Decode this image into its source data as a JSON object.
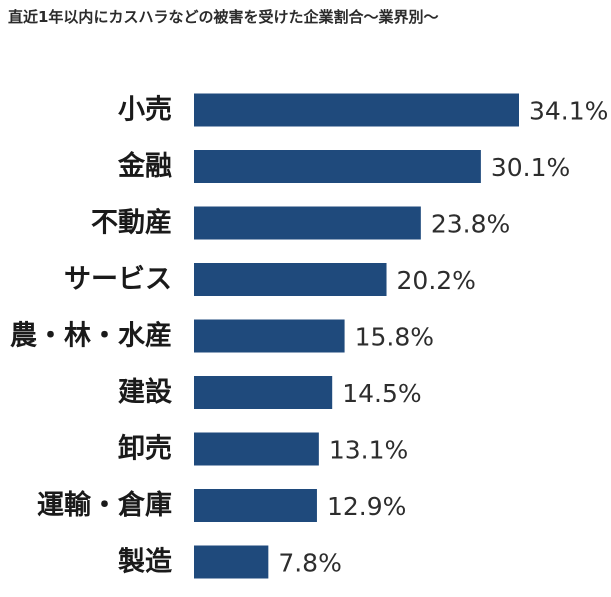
{
  "chart_data": {
    "type": "bar",
    "orientation": "horizontal",
    "title": "直近1年以内にカスハラなどの被害を受けた企業割合〜業界別〜",
    "xlabel": "",
    "ylabel": "",
    "categories": [
      "小売",
      "金融",
      "不動産",
      "サービス",
      "農・林・水産",
      "建設",
      "卸売",
      "運輸・倉庫",
      "製造"
    ],
    "values": [
      34.1,
      30.1,
      23.8,
      20.2,
      15.8,
      14.5,
      13.1,
      12.9,
      7.8
    ],
    "value_labels": [
      "34.1%",
      "30.1%",
      "23.8%",
      "20.2%",
      "15.8%",
      "14.5%",
      "13.1%",
      "12.9%",
      "7.8%"
    ],
    "xlim": [
      0,
      34.1
    ],
    "grid": false,
    "legend": "none",
    "bar_color": "#1f4a7c"
  }
}
